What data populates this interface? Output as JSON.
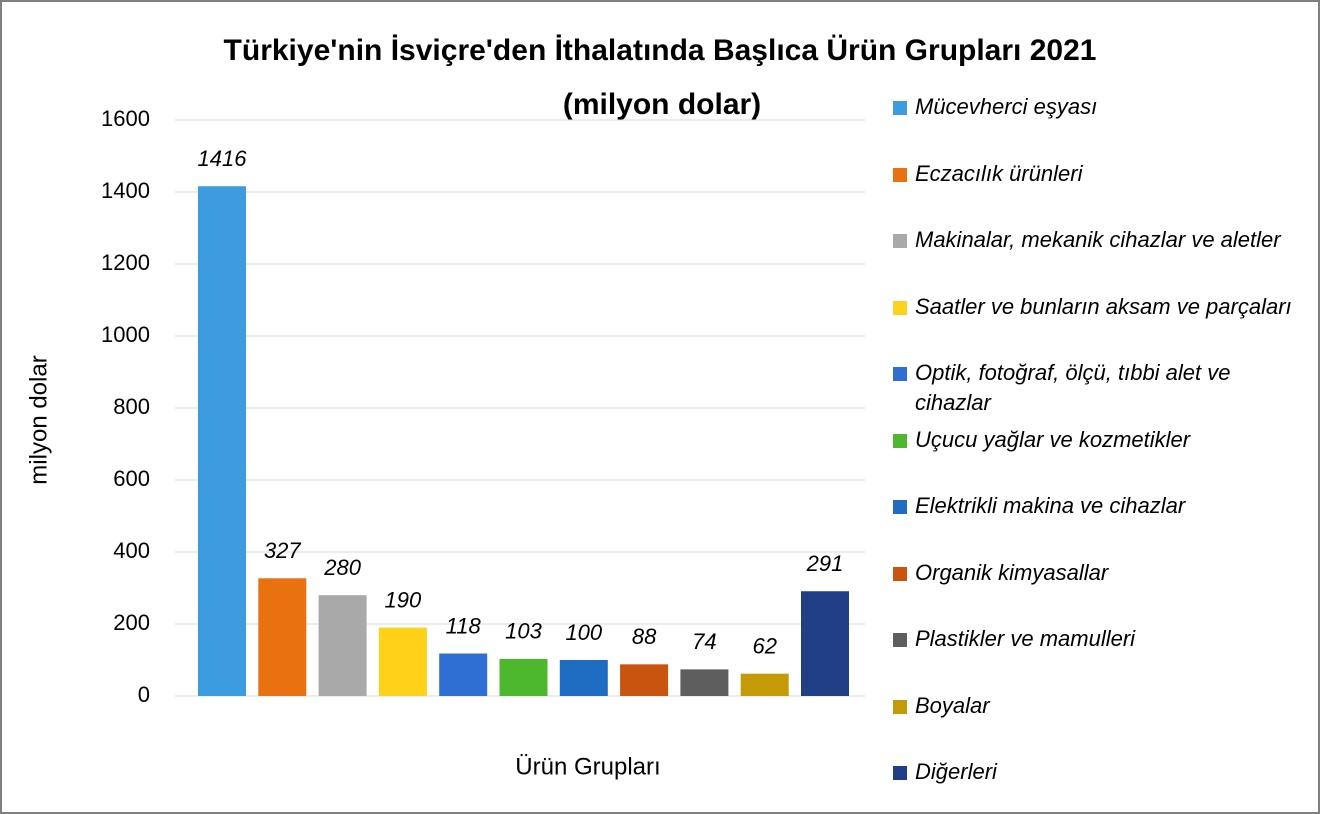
{
  "chart_data": {
    "type": "bar",
    "title": "Türkiye'nin İsviçre'den İthalatında Başlıca Ürün Grupları 2021",
    "subtitle": "(milyon dolar)",
    "y_label": "milyon dolar",
    "x_label": "Ürün Grupları",
    "ylim": [
      0,
      1600
    ],
    "yticks": [
      0,
      200,
      400,
      600,
      800,
      1000,
      1200,
      1400,
      1600
    ],
    "grid": true,
    "legend": "right",
    "series": [
      {
        "name": "Mücevherci eşyası",
        "color": "#3d9be0",
        "values": [
          1416
        ]
      },
      {
        "name": "Eczacılık ürünleri",
        "color": "#e8720f",
        "values": [
          327
        ]
      },
      {
        "name": "Makinalar, mekanik cihazlar ve aletler",
        "color": "#a9a9a9",
        "values": [
          280
        ]
      },
      {
        "name": "Saatler ve bunların aksam ve parçaları",
        "color": "#ffd21a",
        "values": [
          190
        ]
      },
      {
        "name": "Optik, fotoğraf, ölçü, tıbbi alet ve cihazlar",
        "color": "#2f6fd3",
        "values": [
          118
        ]
      },
      {
        "name": "Uçucu yağlar ve kozmetikler",
        "color": "#4db82e",
        "values": [
          103
        ]
      },
      {
        "name": "Elektrikli makina ve cihazlar",
        "color": "#1f6dc2",
        "values": [
          100
        ]
      },
      {
        "name": "Organik kimyasallar",
        "color": "#c9540f",
        "values": [
          88
        ]
      },
      {
        "name": "Plastikler ve mamulleri",
        "color": "#5e5e5e",
        "values": [
          74
        ]
      },
      {
        "name": "Boyalar",
        "color": "#c49a06",
        "values": [
          62
        ]
      },
      {
        "name": "Diğerleri",
        "color": "#203f86",
        "values": [
          291
        ]
      }
    ]
  }
}
